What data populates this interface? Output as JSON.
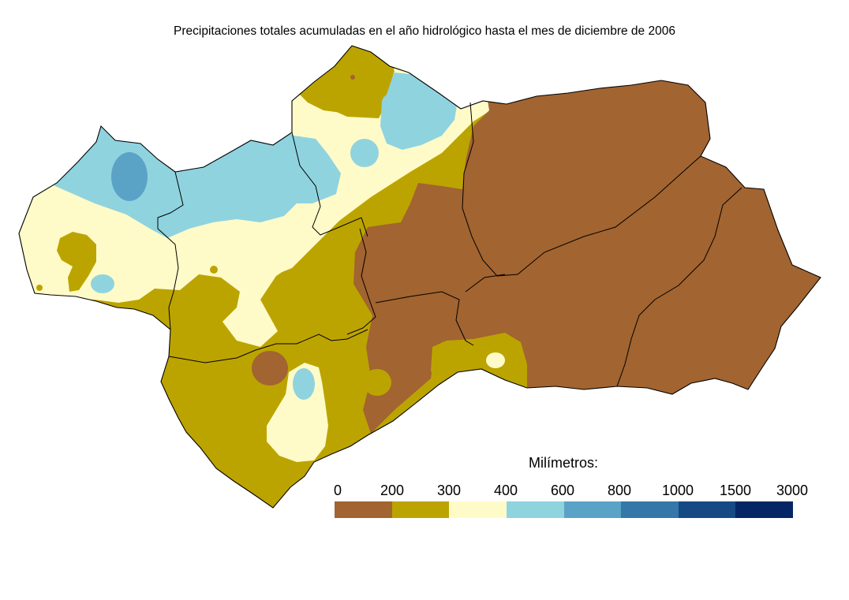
{
  "map": {
    "title": "Precipitaciones totales acumuladas en el año hidrológico hasta el mes de diciembre de 2006",
    "zone_colors": {
      "c0_200": "#a26430",
      "c200_300": "#bca400",
      "c300_400": "#fffbc8",
      "c400_600": "#8fd3df",
      "c600_800": "#5ba2c7",
      "border": "#000000"
    }
  },
  "legend": {
    "title": "Milímetros:",
    "labels": [
      "0",
      "200",
      "300",
      "400",
      "600",
      "800",
      "1000",
      "1500",
      "3000"
    ],
    "colors": [
      "#a26430",
      "#bca400",
      "#fffbc8",
      "#8fd3df",
      "#5ba2c7",
      "#3477a8",
      "#164a84",
      "#052664"
    ]
  }
}
